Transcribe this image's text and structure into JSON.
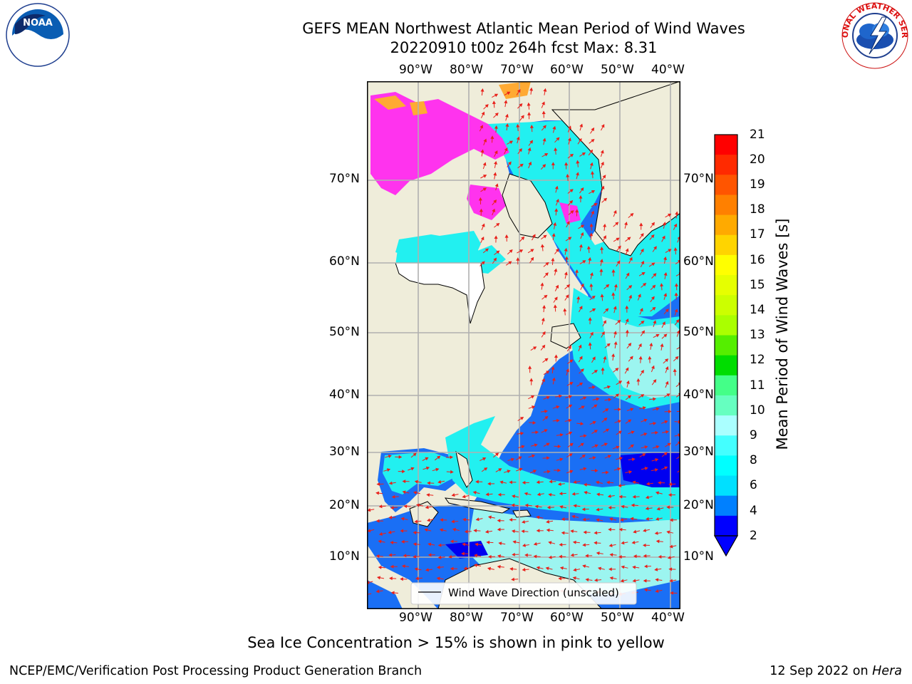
{
  "header": {
    "title_line1": "GEFS MEAN Northwest Atlantic Mean Period of Wind Waves",
    "title_line2": "20220910 t00z 264h fcst   Max: 8.31"
  },
  "logos": {
    "left": {
      "name": "NOAA",
      "ring_text": "NATIONAL OCEANIC AND ATMOSPHERIC ADMINISTRATION • U.S. DEPARTMENT OF COMMERCE"
    },
    "right": {
      "name": "NATIONAL WEATHER SERVICE"
    }
  },
  "map": {
    "lon_labels": [
      "90°W",
      "80°W",
      "70°W",
      "60°W",
      "50°W",
      "40°W"
    ],
    "lat_labels": [
      "70°N",
      "60°N",
      "50°N",
      "40°N",
      "30°N",
      "20°N",
      "10°N"
    ],
    "legend": "Wind Wave Direction (unscaled)",
    "colors": {
      "land": "#efedda",
      "ocean_blue": "#1a6ff5",
      "deep_blue": "#0000f0",
      "cyan": "#22f0f0",
      "light_cyan": "#9cf5f0",
      "sea_ice": "#ff33ee",
      "sea_ice_orange": "#ffaa33",
      "arrows": "#e8201a",
      "grid": "#b0b0b0"
    }
  },
  "colorbar": {
    "label": "Mean Period of Wind Waves [s]",
    "ticks": [
      "21",
      "20",
      "19",
      "18",
      "17",
      "16",
      "15",
      "14",
      "13",
      "12",
      "11",
      "10",
      "9",
      "8",
      "6",
      "4",
      "2"
    ],
    "colors": [
      "#ff0000",
      "#ff2a00",
      "#ff5500",
      "#ff8000",
      "#ffaa00",
      "#ffd400",
      "#ffff00",
      "#e6ff00",
      "#ccff00",
      "#aaff00",
      "#55ee00",
      "#00dd00",
      "#44ff88",
      "#66ffc0",
      "#aaffff",
      "#44ffff",
      "#00ffff",
      "#00e0ff",
      "#0080ff",
      "#0000ff"
    ]
  },
  "footer": {
    "note": "Sea Ice Concentration > 15% is shown in pink to yellow",
    "credit_left": "NCEP/EMC/Verification Post Processing Product Generation Branch",
    "credit_right_prefix": "12 Sep 2022 on ",
    "credit_right_host": "Hera"
  }
}
